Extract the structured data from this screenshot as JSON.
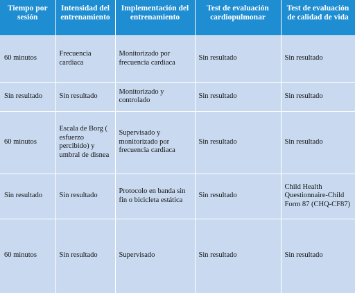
{
  "headers": [
    "Tiempo por sesión",
    "Intensidad del entrenamiento",
    "Implementación del entrenamiento",
    "Test de evaluación cardiopulmonar",
    "Test de evaluación de calidad de vida"
  ],
  "rows": [
    [
      "60 minutos",
      "Frecuencia cardiaca",
      "Monitorizado por frecuencia cardiaca",
      "Sin resultado",
      "Sin resultado"
    ],
    [
      "Sin resultado",
      "Sin resultado",
      "Monitorizado y controlado",
      "Sin resultado",
      "Sin resultado"
    ],
    [
      "60 minutos",
      "Escala de Borg ( esfuerzo percibido) y umbral de disnea",
      "Supervisado y monitorizado por frecuencia cardiaca",
      "Sin resultado",
      "Sin resultado"
    ],
    [
      "Sin resultado",
      "Sin resultado",
      "Protocolo en banda sin fin o bicicleta estática",
      "Sin resultado",
      "Child Health Questionnaire-Child Form 87 (CHQ-CF87)"
    ],
    [
      "60 minutos",
      "Sin resultado",
      "Supervisado",
      "Sin resultado",
      "Sin resultado"
    ]
  ]
}
